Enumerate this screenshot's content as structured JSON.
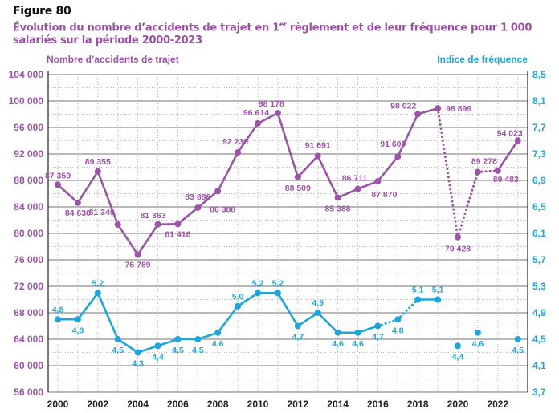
{
  "figure_label": "Figure 80",
  "title_part1": "Évolution du nombre d’accidents de trajet en 1",
  "title_sup": "er",
  "title_part2": " règlement et de leur fréquence pour 1 000 salariés sur la période 2000-2023",
  "chart_data": {
    "type": "line",
    "x": [
      2000,
      2001,
      2002,
      2003,
      2004,
      2005,
      2006,
      2007,
      2008,
      2009,
      2010,
      2011,
      2012,
      2013,
      2014,
      2015,
      2016,
      2017,
      2018,
      2019,
      2020,
      2021,
      2022,
      2023
    ],
    "x_tick_labels": [
      "2000",
      "2002",
      "2004",
      "2006",
      "2008",
      "2010",
      "2012",
      "2014",
      "2016",
      "2018",
      "2020",
      "2022"
    ],
    "ylabel_left": "Nombre d’accidents de trajet",
    "ylabel_right": "Indice de fréquence",
    "ylim_left": [
      56000,
      104000
    ],
    "ylim_right": [
      3.7,
      8.5
    ],
    "y_ticks_left": [
      "56 000",
      "60 000",
      "64 000",
      "68 000",
      "72 000",
      "76 000",
      "80 000",
      "84 000",
      "88 000",
      "92 000",
      "96 000",
      "100 000",
      "104 000"
    ],
    "y_ticks_right": [
      "3,7",
      "4,1",
      "4,5",
      "4,9",
      "5,3",
      "5,7",
      "6,1",
      "6,5",
      "6,9",
      "7,3",
      "7,7",
      "8,1",
      "8,5"
    ],
    "grid": true,
    "colors": {
      "accidents": "#9b54a8",
      "frequency": "#1ba7dd",
      "grid": "#9a9a9a"
    },
    "series": [
      {
        "axis": "left",
        "values": [
          87359,
          84630,
          89355,
          81349,
          76789,
          81363,
          81416,
          83886,
          86388,
          92239,
          96614,
          98178,
          88509,
          91691,
          85388,
          86711,
          87870,
          91609,
          98022,
          98899,
          79428,
          89278,
          89483,
          94023
        ],
        "labels": [
          "87 359",
          "84 630",
          "89 355",
          "81 349",
          "76 789",
          "81 363",
          "81 416",
          "83 886",
          "86 388",
          "92 239",
          "96 614",
          "98 178",
          "88 509",
          "91 691",
          "85 388",
          "86 711",
          "87 870",
          "91 609",
          "98 022",
          "98 899",
          "79 428",
          "89 278",
          "89 483",
          "94 023"
        ],
        "dotted_segments": [
          [
            2019,
            2020
          ],
          [
            2020,
            2021
          ],
          [
            2021,
            2022
          ]
        ]
      },
      {
        "axis": "right",
        "values": [
          4.8,
          4.8,
          5.2,
          4.5,
          4.3,
          4.4,
          4.5,
          4.5,
          4.6,
          5.0,
          5.2,
          5.2,
          4.7,
          4.9,
          4.6,
          4.6,
          4.7,
          4.8,
          5.1,
          5.1,
          4.4,
          4.6,
          null,
          4.5
        ],
        "labels": [
          "4,8",
          "4,8",
          "5,2",
          "4,5",
          "4,3",
          "4,4",
          "4,5",
          "4,5",
          "4,6",
          "5,0",
          "5,2",
          "5,2",
          "4,7",
          "4,9",
          "4,6",
          "4,6",
          "4,7",
          "4,8",
          "5,1",
          "5,1",
          "4,4",
          "4,6",
          "",
          "4,5"
        ],
        "dotted_segments": [
          [
            2016,
            2017
          ],
          [
            2017,
            2018
          ]
        ],
        "hidden_segments": [
          [
            2019,
            2020
          ],
          [
            2020,
            2021
          ],
          [
            2021,
            2022
          ],
          [
            2022,
            2023
          ]
        ]
      }
    ]
  }
}
